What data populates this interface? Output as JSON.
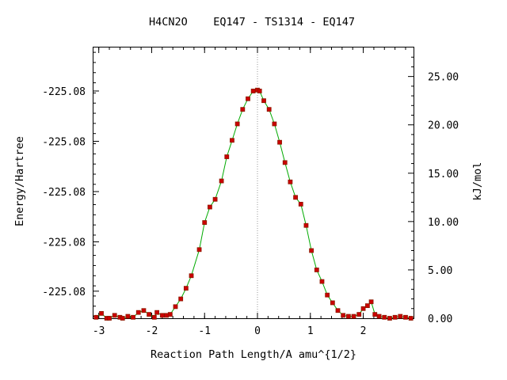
{
  "chart_data": {
    "type": "line",
    "title": "H4CN2O    EQ147 - TS1314 - EQ147",
    "xlabel": "Reaction Path Length/A amu^{1/2}",
    "ylabel_left": "Energy/Hartree",
    "ylabel_right": "kJ/mol",
    "xlim": [
      -3.1,
      2.95
    ],
    "ylim_right": [
      0,
      28
    ],
    "x_ticks": [
      -3,
      -2,
      -1,
      0,
      1,
      2
    ],
    "x_tick_labels": [
      "-3",
      "-2",
      "-1",
      "0",
      "1",
      "2"
    ],
    "left_ticks_kj": [
      2.8,
      7.9,
      13.1,
      18.3,
      23.5
    ],
    "left_tick_labels": [
      "-225.08",
      "-225.08",
      "-225.08",
      "-225.08",
      "-225.08"
    ],
    "right_ticks": [
      0,
      5,
      10,
      15,
      20,
      25
    ],
    "right_tick_labels": [
      "0.00",
      "5.00",
      "10.00",
      "15.00",
      "20.00",
      "25.00"
    ],
    "ts_marker_x": 0,
    "colors": {
      "line": "#00aa00",
      "point_fill": "#cc0000",
      "point_edge": "#8b1a00",
      "ts_line": "#999999"
    },
    "series": [
      {
        "x": [
          -3.05,
          -2.95,
          -2.85,
          -2.8,
          -2.7,
          -2.6,
          -2.55,
          -2.45,
          -2.35,
          -2.25,
          -2.15,
          -2.05,
          -1.95,
          -1.9,
          -1.8,
          -1.72,
          -1.65,
          -1.55,
          -1.45,
          -1.35,
          -1.25,
          -1.1,
          -1.0,
          -0.9,
          -0.8,
          -0.68,
          -0.58,
          -0.48,
          -0.38,
          -0.28,
          -0.18,
          -0.08,
          0.0,
          0.04,
          0.12,
          0.22,
          0.32,
          0.42,
          0.52,
          0.62,
          0.72,
          0.82,
          0.92,
          1.02,
          1.12,
          1.22,
          1.32,
          1.42,
          1.52,
          1.62,
          1.72,
          1.82,
          1.92,
          2.0,
          2.08,
          2.15,
          2.22,
          2.3,
          2.4,
          2.5,
          2.6,
          2.7,
          2.8,
          2.9
        ],
        "y": [
          0.1,
          0.5,
          0.0,
          0.0,
          0.3,
          0.1,
          0.0,
          0.2,
          0.1,
          0.6,
          0.8,
          0.4,
          0.1,
          0.6,
          0.3,
          0.3,
          0.4,
          1.2,
          2.0,
          3.1,
          4.4,
          7.1,
          9.9,
          11.5,
          12.3,
          14.2,
          16.7,
          18.4,
          20.1,
          21.6,
          22.7,
          23.5,
          23.6,
          23.5,
          22.5,
          21.6,
          20.1,
          18.2,
          16.1,
          14.1,
          12.5,
          11.8,
          9.6,
          7.0,
          5.0,
          3.8,
          2.4,
          1.6,
          0.8,
          0.3,
          0.2,
          0.2,
          0.4,
          1.0,
          1.3,
          1.7,
          0.4,
          0.2,
          0.1,
          0.0,
          0.1,
          0.2,
          0.1,
          0.0
        ]
      }
    ]
  }
}
